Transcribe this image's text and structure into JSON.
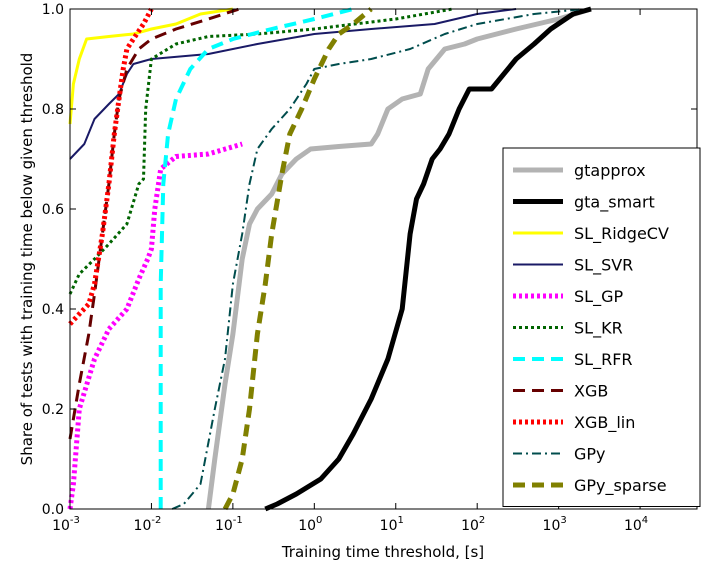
{
  "chart_data": {
    "type": "line",
    "xlabel": "Training time threshold, [s]",
    "ylabel": "Share of tests with training time below given threshold",
    "x_scale": "log",
    "xlim": [
      0.001,
      50000
    ],
    "ylim": [
      0,
      1
    ],
    "x_ticks": [
      {
        "value": 0.001,
        "base": "10",
        "exp": "-3"
      },
      {
        "value": 0.01,
        "base": "10",
        "exp": "-2"
      },
      {
        "value": 0.1,
        "base": "10",
        "exp": "-1"
      },
      {
        "value": 1,
        "base": "10",
        "exp": "0"
      },
      {
        "value": 10,
        "base": "10",
        "exp": "1"
      },
      {
        "value": 100,
        "base": "10",
        "exp": "2"
      },
      {
        "value": 1000,
        "base": "10",
        "exp": "3"
      },
      {
        "value": 10000,
        "base": "10",
        "exp": "4"
      }
    ],
    "y_ticks": [
      "0.0",
      "0.2",
      "0.4",
      "0.6",
      "0.8",
      "1.0"
    ],
    "grid": false,
    "legend_position": "right",
    "series": [
      {
        "name": "gtapprox",
        "color": "#b3b3b3",
        "dash": "solid",
        "width": 5,
        "points": [
          [
            0.05,
            0
          ],
          [
            0.06,
            0.1
          ],
          [
            0.08,
            0.25
          ],
          [
            0.1,
            0.35
          ],
          [
            0.13,
            0.5
          ],
          [
            0.16,
            0.57
          ],
          [
            0.2,
            0.6
          ],
          [
            0.3,
            0.63
          ],
          [
            0.4,
            0.67
          ],
          [
            0.6,
            0.7
          ],
          [
            0.9,
            0.72
          ],
          [
            2,
            0.725
          ],
          [
            5,
            0.73
          ],
          [
            6,
            0.75
          ],
          [
            8,
            0.8
          ],
          [
            12,
            0.82
          ],
          [
            20,
            0.83
          ],
          [
            25,
            0.88
          ],
          [
            40,
            0.92
          ],
          [
            70,
            0.93
          ],
          [
            100,
            0.94
          ],
          [
            300,
            0.96
          ],
          [
            1000,
            0.98
          ],
          [
            2500,
            1.0
          ]
        ]
      },
      {
        "name": "gta_smart",
        "color": "#000000",
        "dash": "solid",
        "width": 5,
        "points": [
          [
            0.25,
            0
          ],
          [
            0.35,
            0.01
          ],
          [
            0.6,
            0.03
          ],
          [
            1.2,
            0.06
          ],
          [
            2,
            0.1
          ],
          [
            3,
            0.15
          ],
          [
            5,
            0.22
          ],
          [
            8,
            0.3
          ],
          [
            12,
            0.4
          ],
          [
            15,
            0.55
          ],
          [
            18,
            0.62
          ],
          [
            22,
            0.65
          ],
          [
            28,
            0.7
          ],
          [
            35,
            0.72
          ],
          [
            45,
            0.75
          ],
          [
            60,
            0.8
          ],
          [
            80,
            0.84
          ],
          [
            150,
            0.84
          ],
          [
            300,
            0.9
          ],
          [
            500,
            0.93
          ],
          [
            800,
            0.96
          ],
          [
            1500,
            0.99
          ],
          [
            2500,
            1.0
          ]
        ]
      },
      {
        "name": "SL_RidgeCV",
        "color": "#ffff00",
        "dash": "solid",
        "width": 3,
        "points": [
          [
            0.001,
            0.77
          ],
          [
            0.0011,
            0.85
          ],
          [
            0.0013,
            0.9
          ],
          [
            0.0016,
            0.94
          ],
          [
            0.003,
            0.945
          ],
          [
            0.006,
            0.95
          ],
          [
            0.01,
            0.96
          ],
          [
            0.02,
            0.97
          ],
          [
            0.04,
            0.99
          ],
          [
            0.1,
            1.0
          ]
        ]
      },
      {
        "name": "SL_SVR",
        "color": "#1a1a66",
        "dash": "solid",
        "width": 2,
        "points": [
          [
            0.001,
            0.7
          ],
          [
            0.0015,
            0.73
          ],
          [
            0.002,
            0.78
          ],
          [
            0.003,
            0.81
          ],
          [
            0.004,
            0.83
          ],
          [
            0.005,
            0.87
          ],
          [
            0.006,
            0.89
          ],
          [
            0.01,
            0.9
          ],
          [
            0.05,
            0.91
          ],
          [
            0.2,
            0.93
          ],
          [
            1,
            0.95
          ],
          [
            5,
            0.96
          ],
          [
            30,
            0.97
          ],
          [
            100,
            0.99
          ],
          [
            300,
            1.0
          ]
        ]
      },
      {
        "name": "SL_GP",
        "color": "#ff00ff",
        "dash": "dotted",
        "width": 5,
        "points": [
          [
            0.001,
            0
          ],
          [
            0.0011,
            0.05
          ],
          [
            0.0013,
            0.2
          ],
          [
            0.002,
            0.3
          ],
          [
            0.003,
            0.36
          ],
          [
            0.005,
            0.4
          ],
          [
            0.007,
            0.46
          ],
          [
            0.009,
            0.5
          ],
          [
            0.01,
            0.52
          ],
          [
            0.011,
            0.6
          ],
          [
            0.013,
            0.68
          ],
          [
            0.02,
            0.705
          ],
          [
            0.05,
            0.71
          ],
          [
            0.13,
            0.73
          ]
        ]
      },
      {
        "name": "SL_KR",
        "color": "#006400",
        "dash": "dotted",
        "width": 3,
        "points": [
          [
            0.001,
            0.43
          ],
          [
            0.0013,
            0.47
          ],
          [
            0.002,
            0.5
          ],
          [
            0.003,
            0.53
          ],
          [
            0.005,
            0.57
          ],
          [
            0.007,
            0.65
          ],
          [
            0.008,
            0.66
          ],
          [
            0.0085,
            0.8
          ],
          [
            0.01,
            0.9
          ],
          [
            0.02,
            0.93
          ],
          [
            0.05,
            0.945
          ],
          [
            0.2,
            0.95
          ],
          [
            1,
            0.96
          ],
          [
            10,
            0.98
          ],
          [
            50,
            1.0
          ]
        ]
      },
      {
        "name": "SL_RFR",
        "color": "#00ffff",
        "dash": "dashed",
        "width": 4,
        "points": [
          [
            0.013,
            0
          ],
          [
            0.013,
            0.45
          ],
          [
            0.014,
            0.65
          ],
          [
            0.016,
            0.75
          ],
          [
            0.02,
            0.82
          ],
          [
            0.03,
            0.88
          ],
          [
            0.05,
            0.92
          ],
          [
            0.1,
            0.94
          ],
          [
            0.3,
            0.96
          ],
          [
            1,
            0.98
          ],
          [
            3,
            1.0
          ]
        ]
      },
      {
        "name": "XGB",
        "color": "#660000",
        "dash": "dashed",
        "width": 3,
        "points": [
          [
            0.001,
            0.14
          ],
          [
            0.0013,
            0.25
          ],
          [
            0.0017,
            0.35
          ],
          [
            0.002,
            0.43
          ],
          [
            0.0025,
            0.55
          ],
          [
            0.003,
            0.65
          ],
          [
            0.0035,
            0.75
          ],
          [
            0.004,
            0.82
          ],
          [
            0.005,
            0.88
          ],
          [
            0.007,
            0.92
          ],
          [
            0.01,
            0.94
          ],
          [
            0.02,
            0.96
          ],
          [
            0.05,
            0.98
          ],
          [
            0.12,
            1.0
          ]
        ]
      },
      {
        "name": "XGB_lin",
        "color": "#ff0000",
        "dash": "dotted",
        "width": 5,
        "points": [
          [
            0.001,
            0.37
          ],
          [
            0.0013,
            0.39
          ],
          [
            0.0017,
            0.41
          ],
          [
            0.002,
            0.45
          ],
          [
            0.0025,
            0.55
          ],
          [
            0.003,
            0.65
          ],
          [
            0.0035,
            0.75
          ],
          [
            0.004,
            0.82
          ],
          [
            0.0045,
            0.88
          ],
          [
            0.005,
            0.92
          ],
          [
            0.006,
            0.94
          ],
          [
            0.008,
            0.97
          ],
          [
            0.01,
            1.0
          ]
        ]
      },
      {
        "name": "GPy",
        "color": "#004d4d",
        "dash": "dashdot",
        "width": 2,
        "points": [
          [
            0.018,
            0
          ],
          [
            0.025,
            0.01
          ],
          [
            0.04,
            0.05
          ],
          [
            0.06,
            0.2
          ],
          [
            0.08,
            0.3
          ],
          [
            0.1,
            0.45
          ],
          [
            0.13,
            0.55
          ],
          [
            0.16,
            0.65
          ],
          [
            0.2,
            0.72
          ],
          [
            0.3,
            0.76
          ],
          [
            0.5,
            0.8
          ],
          [
            0.8,
            0.85
          ],
          [
            1,
            0.88
          ],
          [
            2,
            0.89
          ],
          [
            5,
            0.9
          ],
          [
            15,
            0.92
          ],
          [
            40,
            0.95
          ],
          [
            100,
            0.97
          ],
          [
            500,
            0.99
          ],
          [
            2000,
            1.0
          ]
        ]
      },
      {
        "name": "GPy_sparse",
        "color": "#808000",
        "dash": "dashed",
        "width": 5,
        "points": [
          [
            0.08,
            0
          ],
          [
            0.1,
            0.03
          ],
          [
            0.13,
            0.1
          ],
          [
            0.16,
            0.2
          ],
          [
            0.2,
            0.35
          ],
          [
            0.25,
            0.45
          ],
          [
            0.3,
            0.55
          ],
          [
            0.4,
            0.67
          ],
          [
            0.5,
            0.75
          ],
          [
            0.7,
            0.8
          ],
          [
            1,
            0.86
          ],
          [
            1.5,
            0.92
          ],
          [
            2,
            0.95
          ],
          [
            3,
            0.97
          ],
          [
            5,
            1.0
          ]
        ]
      }
    ]
  }
}
